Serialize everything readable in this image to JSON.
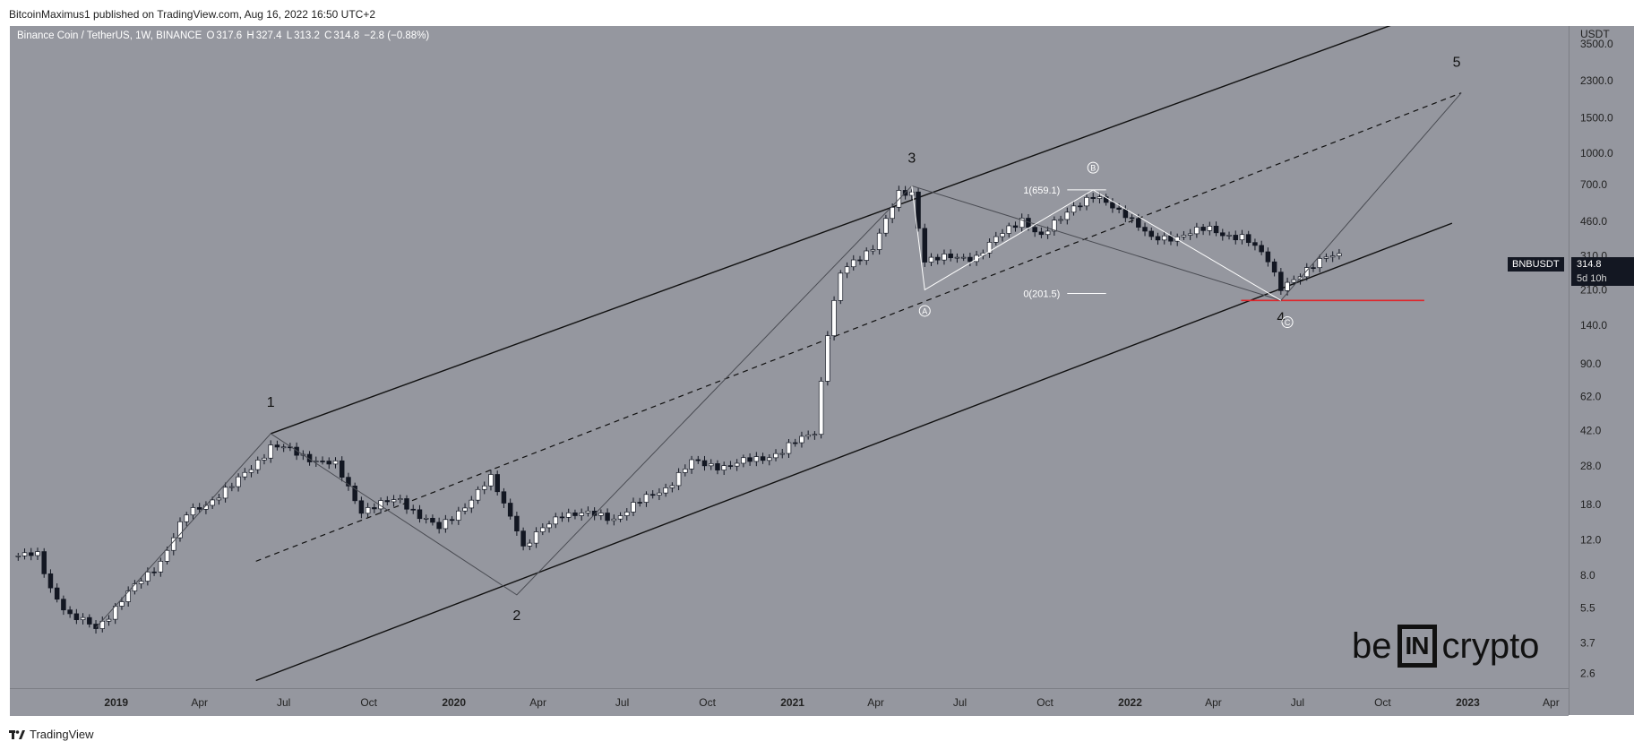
{
  "header": {
    "published_text": "BitcoinMaximus1 published on TradingView.com, Aug 16, 2022 16:50 UTC+2"
  },
  "legend": {
    "symbol": "Binance Coin / TetherUS, 1W, BINANCE",
    "o_label": "O",
    "o_value": "317.6",
    "h_label": "H",
    "h_value": "327.4",
    "l_label": "L",
    "l_value": "313.2",
    "c_label": "C",
    "c_value": "314.8",
    "change": "−2.8 (−0.88%)"
  },
  "price_tag": {
    "ticker": "BNBUSDT",
    "price": "314.8",
    "countdown": "5d 10h"
  },
  "footer": {
    "brand": "TradingView"
  },
  "watermark": {
    "pre": "be",
    "box": "IN",
    "post": "crypto"
  },
  "colors": {
    "background": "#95979f",
    "candle_up": "#ffffff",
    "candle_down": "#131722",
    "support_line": "#e0242a",
    "channel": "#111111"
  },
  "chart_data": {
    "type": "candlestick",
    "title": "",
    "y_scale": "log",
    "y_unit": "USDT",
    "y_ticks": [
      2.6,
      3.7,
      5.5,
      8.0,
      12.0,
      18.0,
      28.0,
      42.0,
      62.0,
      90.0,
      140.0,
      210.0,
      310.0,
      460.0,
      700.0,
      1000.0,
      1500.0,
      2300.0,
      3500.0
    ],
    "y_tick_labels": [
      "2.6",
      "3.7",
      "5.5",
      "8.0",
      "12.0",
      "18.0",
      "28.0",
      "42.0",
      "62.0",
      "90.0",
      "140.0",
      "210.0",
      "310.0",
      "460.0",
      "700.0",
      "1000.0",
      "1500.0",
      "2300.0",
      "3500.0"
    ],
    "x_ticks": [
      {
        "date": "2019-01-01",
        "label": "2019",
        "bold": true
      },
      {
        "date": "2019-04-01",
        "label": "Apr"
      },
      {
        "date": "2019-07-01",
        "label": "Jul"
      },
      {
        "date": "2019-10-01",
        "label": "Oct"
      },
      {
        "date": "2020-01-01",
        "label": "2020",
        "bold": true
      },
      {
        "date": "2020-04-01",
        "label": "Apr"
      },
      {
        "date": "2020-07-01",
        "label": "Jul"
      },
      {
        "date": "2020-10-01",
        "label": "Oct"
      },
      {
        "date": "2021-01-01",
        "label": "2021",
        "bold": true
      },
      {
        "date": "2021-04-01",
        "label": "Apr"
      },
      {
        "date": "2021-07-01",
        "label": "Jul"
      },
      {
        "date": "2021-10-01",
        "label": "Oct"
      },
      {
        "date": "2022-01-01",
        "label": "2022",
        "bold": true
      },
      {
        "date": "2022-04-01",
        "label": "Apr"
      },
      {
        "date": "2022-07-01",
        "label": "Jul"
      },
      {
        "date": "2022-10-01",
        "label": "Oct"
      },
      {
        "date": "2023-01-01",
        "label": "2023",
        "bold": true
      },
      {
        "date": "2023-04-01",
        "label": "Apr"
      }
    ],
    "x_range": [
      "2018-09-08",
      "2023-04-20"
    ],
    "y_range": [
      2.2,
      4300
    ],
    "anchors": [
      {
        "date": "2018-09-10",
        "price": 10.0
      },
      {
        "date": "2018-10-08",
        "price": 10.0
      },
      {
        "date": "2018-10-22",
        "price": 7.0
      },
      {
        "date": "2018-11-12",
        "price": 5.0
      },
      {
        "date": "2018-12-10",
        "price": 4.4
      },
      {
        "date": "2019-01-07",
        "price": 6.0
      },
      {
        "date": "2019-02-18",
        "price": 9.5
      },
      {
        "date": "2019-03-18",
        "price": 16.0
      },
      {
        "date": "2019-05-06",
        "price": 22.0
      },
      {
        "date": "2019-06-17",
        "price": 35.0
      },
      {
        "date": "2019-07-01",
        "price": 34.0
      },
      {
        "date": "2019-08-26",
        "price": 28.0
      },
      {
        "date": "2019-09-23",
        "price": 17.0
      },
      {
        "date": "2019-11-04",
        "price": 19.0
      },
      {
        "date": "2019-12-16",
        "price": 13.5
      },
      {
        "date": "2020-02-10",
        "price": 24.0
      },
      {
        "date": "2020-03-09",
        "price": 14.0
      },
      {
        "date": "2020-03-16",
        "price": 11.0
      },
      {
        "date": "2020-04-27",
        "price": 16.5
      },
      {
        "date": "2020-06-22",
        "price": 15.5
      },
      {
        "date": "2020-08-17",
        "price": 22.0
      },
      {
        "date": "2020-09-14",
        "price": 29.0
      },
      {
        "date": "2020-10-26",
        "price": 28.0
      },
      {
        "date": "2020-12-21",
        "price": 33.0
      },
      {
        "date": "2021-01-25",
        "price": 42.0
      },
      {
        "date": "2021-02-08",
        "price": 130.0
      },
      {
        "date": "2021-02-22",
        "price": 250.0
      },
      {
        "date": "2021-03-29",
        "price": 350.0
      },
      {
        "date": "2021-04-26",
        "price": 620.0
      },
      {
        "date": "2021-05-10",
        "price": 640.0
      },
      {
        "date": "2021-05-24",
        "price": 300.0
      },
      {
        "date": "2021-06-21",
        "price": 300.0
      },
      {
        "date": "2021-07-19",
        "price": 310.0
      },
      {
        "date": "2021-09-06",
        "price": 480.0
      },
      {
        "date": "2021-09-27",
        "price": 380.0
      },
      {
        "date": "2021-11-01",
        "price": 560.0
      },
      {
        "date": "2021-11-22",
        "price": 600.0
      },
      {
        "date": "2021-12-27",
        "price": 510.0
      },
      {
        "date": "2022-01-24",
        "price": 370.0
      },
      {
        "date": "2022-03-28",
        "price": 420.0
      },
      {
        "date": "2022-05-02",
        "price": 380.0
      },
      {
        "date": "2022-05-30",
        "price": 300.0
      },
      {
        "date": "2022-06-13",
        "price": 220.0
      },
      {
        "date": "2022-07-04",
        "price": 240.0
      },
      {
        "date": "2022-08-01",
        "price": 320.0
      },
      {
        "date": "2022-08-15",
        "price": 314.8
      }
    ],
    "channel_lines": [
      {
        "style": "solid",
        "from": {
          "date": "2019-06-17",
          "price": 40.5
        },
        "to": {
          "date": "2022-12-20",
          "price": 5700.0
        }
      },
      {
        "style": "solid",
        "from": {
          "date": "2019-06-01",
          "price": 2.4
        },
        "to": {
          "date": "2022-12-15",
          "price": 450.0
        }
      },
      {
        "style": "dashed",
        "from": {
          "date": "2019-06-01",
          "price": 9.4
        },
        "to": {
          "date": "2022-12-25",
          "price": 2000.0
        }
      }
    ],
    "wave_path": [
      {
        "date": "2018-12-10",
        "price": 4.4
      },
      {
        "date": "2019-06-17",
        "price": 40.5
      },
      {
        "date": "2020-03-09",
        "price": 6.4
      },
      {
        "date": "2021-05-10",
        "price": 690.0
      },
      {
        "date": "2022-06-13",
        "price": 186.0
      },
      {
        "date": "2022-12-25",
        "price": 2000.0
      }
    ],
    "corrective_path": [
      {
        "date": "2021-05-10",
        "price": 690.0
      },
      {
        "date": "2021-05-24",
        "price": 210.0
      },
      {
        "date": "2021-11-22",
        "price": 659.1
      },
      {
        "date": "2022-06-13",
        "price": 186.0
      }
    ],
    "fib_levels": [
      {
        "label": "1(659.1)",
        "price": 659.1,
        "from_date": "2021-10-25",
        "to_date": "2021-12-06"
      },
      {
        "label": "0(201.5)",
        "price": 201.5,
        "from_date": "2021-10-25",
        "to_date": "2021-12-06"
      }
    ],
    "support_line": {
      "price": 186.0,
      "from_date": "2022-05-01",
      "to_date": "2022-11-15"
    },
    "wave_labels": [
      {
        "text": "1",
        "date": "2019-06-17",
        "price": 55.0
      },
      {
        "text": "2",
        "date": "2020-03-09",
        "price": 4.8
      },
      {
        "text": "3",
        "date": "2021-05-10",
        "price": 900.0
      },
      {
        "text": "4",
        "date": "2022-06-13",
        "price": 145.0
      },
      {
        "text": "5",
        "date": "2022-12-20",
        "price": 2700.0
      }
    ],
    "circle_labels": [
      {
        "text": "A",
        "date": "2021-05-24",
        "price": 165.0
      },
      {
        "text": "B",
        "date": "2021-11-22",
        "price": 850.0
      },
      {
        "text": "C",
        "date": "2022-06-20",
        "price": 145.0
      }
    ]
  }
}
